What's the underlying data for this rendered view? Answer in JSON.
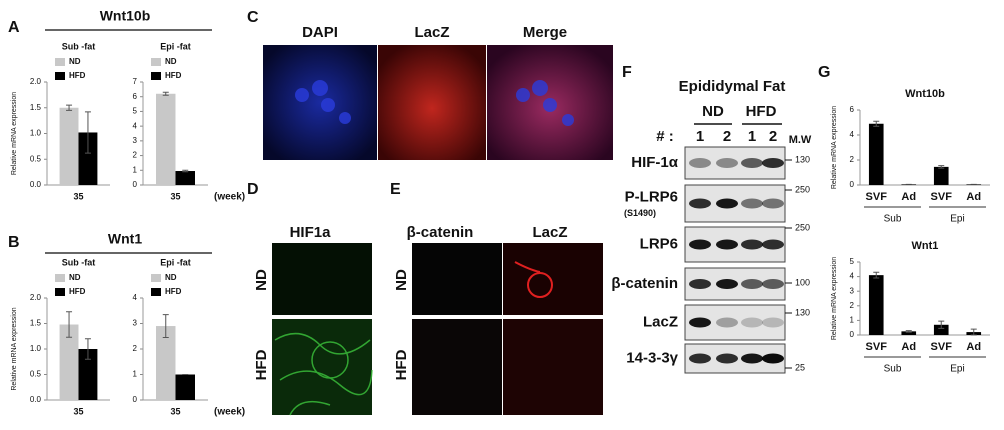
{
  "panel_labels": [
    "A",
    "B",
    "C",
    "D",
    "E",
    "F",
    "G"
  ],
  "panel_a_title": "Wnt10b",
  "panel_b_title": "Wnt1",
  "chart_data": [
    {
      "type": "bar",
      "title": "Sub -fat",
      "ylabel": "Relative mRNA expression",
      "categories": [
        "35"
      ],
      "ylim": [
        0,
        2
      ],
      "yticks": [
        {
          "value": 0,
          "label": "0.0"
        },
        {
          "value": 0.5,
          "label": "0.5"
        },
        {
          "value": 1,
          "label": "1.0"
        },
        {
          "value": 1.5,
          "label": "1.5"
        },
        {
          "value": 2,
          "label": "2.0"
        }
      ],
      "series": [
        {
          "name": "ND",
          "color": "#c8c8c8",
          "values": [
            1.5
          ],
          "errors": [
            0.05
          ]
        },
        {
          "name": "HFD",
          "color": "#000000",
          "values": [
            1.02
          ],
          "errors": [
            0.4
          ]
        }
      ]
    },
    {
      "type": "bar",
      "title": "Epi -fat",
      "x_note": "(week)",
      "categories": [
        "35"
      ],
      "ylim": [
        0,
        7
      ],
      "yticks": [
        0,
        1,
        2,
        3,
        4,
        5,
        6,
        7
      ],
      "series": [
        {
          "name": "ND",
          "color": "#c8c8c8",
          "values": [
            6.2
          ],
          "errors": [
            0.1
          ]
        },
        {
          "name": "HFD",
          "color": "#000000",
          "values": [
            0.95
          ],
          "errors": [
            0.05
          ]
        }
      ]
    },
    {
      "type": "bar",
      "title": "Sub -fat",
      "ylabel": "Relative mRNA expression",
      "categories": [
        "35"
      ],
      "ylim": [
        0,
        2
      ],
      "yticks": [
        {
          "value": 0,
          "label": "0.0"
        },
        {
          "value": 0.5,
          "label": "0.5"
        },
        {
          "value": 1,
          "label": "1.0"
        },
        {
          "value": 1.5,
          "label": "1.5"
        },
        {
          "value": 2,
          "label": "2.0"
        }
      ],
      "series": [
        {
          "name": "ND",
          "color": "#c8c8c8",
          "values": [
            1.48
          ],
          "errors": [
            0.25
          ]
        },
        {
          "name": "HFD",
          "color": "#000000",
          "values": [
            1.0
          ],
          "errors": [
            0.2
          ]
        }
      ]
    },
    {
      "type": "bar",
      "title": "Epi -fat",
      "x_note": "(week)",
      "categories": [
        "35"
      ],
      "ylim": [
        0,
        4
      ],
      "yticks": [
        0,
        1,
        2,
        3,
        4
      ],
      "series": [
        {
          "name": "ND",
          "color": "#c8c8c8",
          "values": [
            2.9
          ],
          "errors": [
            0.45
          ]
        },
        {
          "name": "HFD",
          "color": "#000000",
          "values": [
            1.0
          ],
          "errors": [
            0
          ]
        }
      ]
    },
    {
      "type": "bar",
      "title": "Wnt10b",
      "ylabel": "Relative mRNA expression",
      "categories": [
        "SVF",
        "Ad",
        "SVF",
        "Ad"
      ],
      "groups": [
        "Sub",
        "Epi"
      ],
      "ylim": [
        0,
        6
      ],
      "yticks": [
        0,
        2,
        4,
        6
      ],
      "series": [
        {
          "color": "#000000",
          "values": [
            4.9,
            0.05,
            1.45,
            0.05
          ],
          "errors": [
            0.2,
            0,
            0.1,
            0
          ]
        }
      ]
    },
    {
      "type": "bar",
      "title": "Wnt1",
      "ylabel": "Relative mRNA expression",
      "categories": [
        "SVF",
        "Ad",
        "SVF",
        "Ad"
      ],
      "groups": [
        "Sub",
        "Epi"
      ],
      "ylim": [
        0,
        5
      ],
      "yticks": [
        0,
        1,
        2,
        3,
        4,
        5
      ],
      "series": [
        {
          "color": "#000000",
          "values": [
            4.1,
            0.25,
            0.7,
            0.2
          ],
          "errors": [
            0.2,
            0.05,
            0.25,
            0.2
          ]
        }
      ]
    }
  ],
  "panel_c": {
    "columns": [
      "DAPI",
      "LacZ",
      "Merge"
    ]
  },
  "panel_d": {
    "column": "HIF1a",
    "rows": [
      "ND",
      "HFD"
    ]
  },
  "panel_e": {
    "columns": [
      "β-catenin",
      "LacZ"
    ],
    "rows": [
      "ND",
      "HFD"
    ]
  },
  "panel_f": {
    "title": "Epididymal Fat",
    "groups": [
      "ND",
      "HFD"
    ],
    "lane_header": "# :",
    "lanes": [
      "1",
      "2",
      "1",
      "2"
    ],
    "mw_header": "M.W",
    "rows": [
      {
        "label": "HIF-1α",
        "mw": 130
      },
      {
        "label": "P-LRP6",
        "sublabel": "(S1490)",
        "mw": 250
      },
      {
        "label": "LRP6",
        "mw": 250
      },
      {
        "label": "β-catenin",
        "mw": 100
      },
      {
        "label": "LacZ",
        "mw": 130
      },
      {
        "label": "14-3-3γ",
        "mw": 25
      }
    ]
  }
}
